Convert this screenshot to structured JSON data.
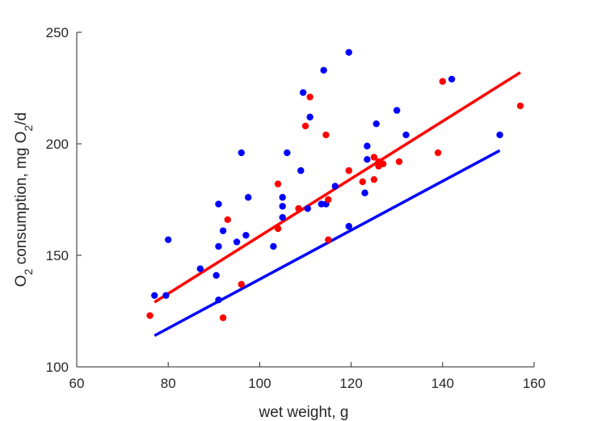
{
  "chart_data": {
    "type": "scatter",
    "xlabel": "wet weight, g",
    "ylabel": {
      "p1": "O",
      "s1": "2",
      "p2": " consumption, mg O",
      "s2": "2",
      "p3": "/d"
    },
    "xlim": [
      60,
      160
    ],
    "ylim": [
      100,
      250
    ],
    "xticks": [
      60,
      80,
      100,
      120,
      140,
      160
    ],
    "yticks": [
      100,
      150,
      200,
      250
    ],
    "grid": false,
    "colors": {
      "blue": "#0000ff",
      "red": "#ff0000",
      "axis": "#262626"
    },
    "series": [
      {
        "color": "#0000ff",
        "points": [
          [
            77,
            132
          ],
          [
            79.5,
            132
          ],
          [
            80,
            157
          ],
          [
            87,
            144
          ],
          [
            90.5,
            141
          ],
          [
            91,
            130
          ],
          [
            91,
            173
          ],
          [
            91,
            154
          ],
          [
            92,
            161
          ],
          [
            95,
            156
          ],
          [
            96,
            196
          ],
          [
            97,
            159
          ],
          [
            97.5,
            176
          ],
          [
            103,
            154
          ],
          [
            105,
            167
          ],
          [
            105,
            172
          ],
          [
            105,
            176
          ],
          [
            106,
            196
          ],
          [
            109,
            188
          ],
          [
            109.5,
            223
          ],
          [
            110.5,
            171
          ],
          [
            111,
            212
          ],
          [
            113.5,
            173
          ],
          [
            114,
            233
          ],
          [
            114.5,
            173
          ],
          [
            116.5,
            181
          ],
          [
            119.5,
            163
          ],
          [
            119.5,
            241
          ],
          [
            123,
            178
          ],
          [
            123.5,
            193
          ],
          [
            123.5,
            199
          ],
          [
            125.5,
            209
          ],
          [
            130,
            215
          ],
          [
            132,
            204
          ],
          [
            142,
            229
          ],
          [
            152.5,
            204
          ]
        ],
        "fit": [
          [
            77,
            114
          ],
          [
            152.5,
            197
          ]
        ]
      },
      {
        "color": "#ff0000",
        "points": [
          [
            76,
            123
          ],
          [
            92,
            122
          ],
          [
            93,
            166
          ],
          [
            96,
            137
          ],
          [
            104,
            182
          ],
          [
            104,
            162
          ],
          [
            108.5,
            171
          ],
          [
            110,
            208
          ],
          [
            111,
            221
          ],
          [
            114.5,
            204
          ],
          [
            115,
            157
          ],
          [
            115,
            175
          ],
          [
            119.5,
            188
          ],
          [
            122.5,
            183
          ],
          [
            125,
            194
          ],
          [
            125,
            184
          ],
          [
            126,
            190
          ],
          [
            126,
            192
          ],
          [
            127,
            191
          ],
          [
            130.5,
            192
          ],
          [
            139,
            196
          ],
          [
            140,
            228
          ],
          [
            157,
            217
          ]
        ],
        "fit": [
          [
            77,
            129
          ],
          [
            157,
            232
          ]
        ]
      }
    ]
  }
}
